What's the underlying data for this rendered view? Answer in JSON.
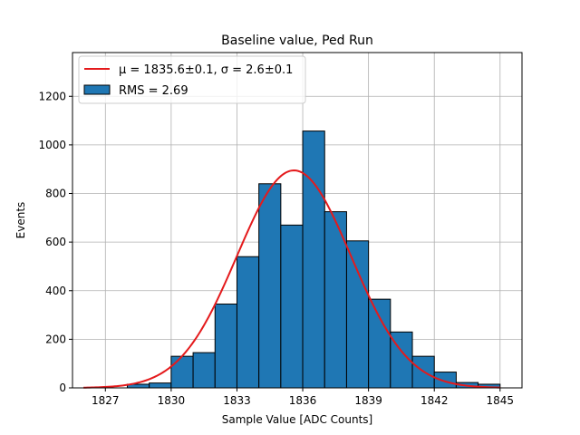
{
  "chart_data": {
    "type": "bar",
    "title": "Baseline value, Ped Run",
    "xlabel": "Sample Value [ADC Counts]",
    "ylabel": "Events",
    "xlim": [
      1825.5,
      1846.0
    ],
    "ylim": [
      0,
      1380
    ],
    "xticks": [
      1827,
      1830,
      1833,
      1836,
      1839,
      1842,
      1845
    ],
    "yticks": [
      0,
      200,
      400,
      600,
      800,
      1000,
      1200
    ],
    "grid": true,
    "legend_position": "top-left",
    "bar_color": "#1f77b4",
    "fit_color": "#e41a1c",
    "bin_width": 1,
    "bins": [
      {
        "x0": 1828,
        "value": 15
      },
      {
        "x0": 1829,
        "value": 20
      },
      {
        "x0": 1830,
        "value": 130
      },
      {
        "x0": 1831,
        "value": 145
      },
      {
        "x0": 1832,
        "value": 345
      },
      {
        "x0": 1833,
        "value": 540
      },
      {
        "x0": 1834,
        "value": 840
      },
      {
        "x0": 1835,
        "value": 670
      },
      {
        "x0": 1836,
        "value": 1057
      },
      {
        "x0": 1837,
        "value": 725
      },
      {
        "x0": 1838,
        "value": 605
      },
      {
        "x0": 1839,
        "value": 365
      },
      {
        "x0": 1840,
        "value": 230
      },
      {
        "x0": 1841,
        "value": 130
      },
      {
        "x0": 1842,
        "value": 65
      },
      {
        "x0": 1843,
        "value": 22
      },
      {
        "x0": 1844,
        "value": 15
      }
    ],
    "fit": {
      "mu": 1835.6,
      "sigma": 2.6,
      "amplitude": 895,
      "x_range": [
        1826,
        1845
      ]
    },
    "series": [
      {
        "name": "μ = 1835.6±0.1, σ = 2.6±0.1",
        "kind": "line"
      },
      {
        "name": "RMS = 2.69",
        "kind": "bar"
      }
    ]
  }
}
